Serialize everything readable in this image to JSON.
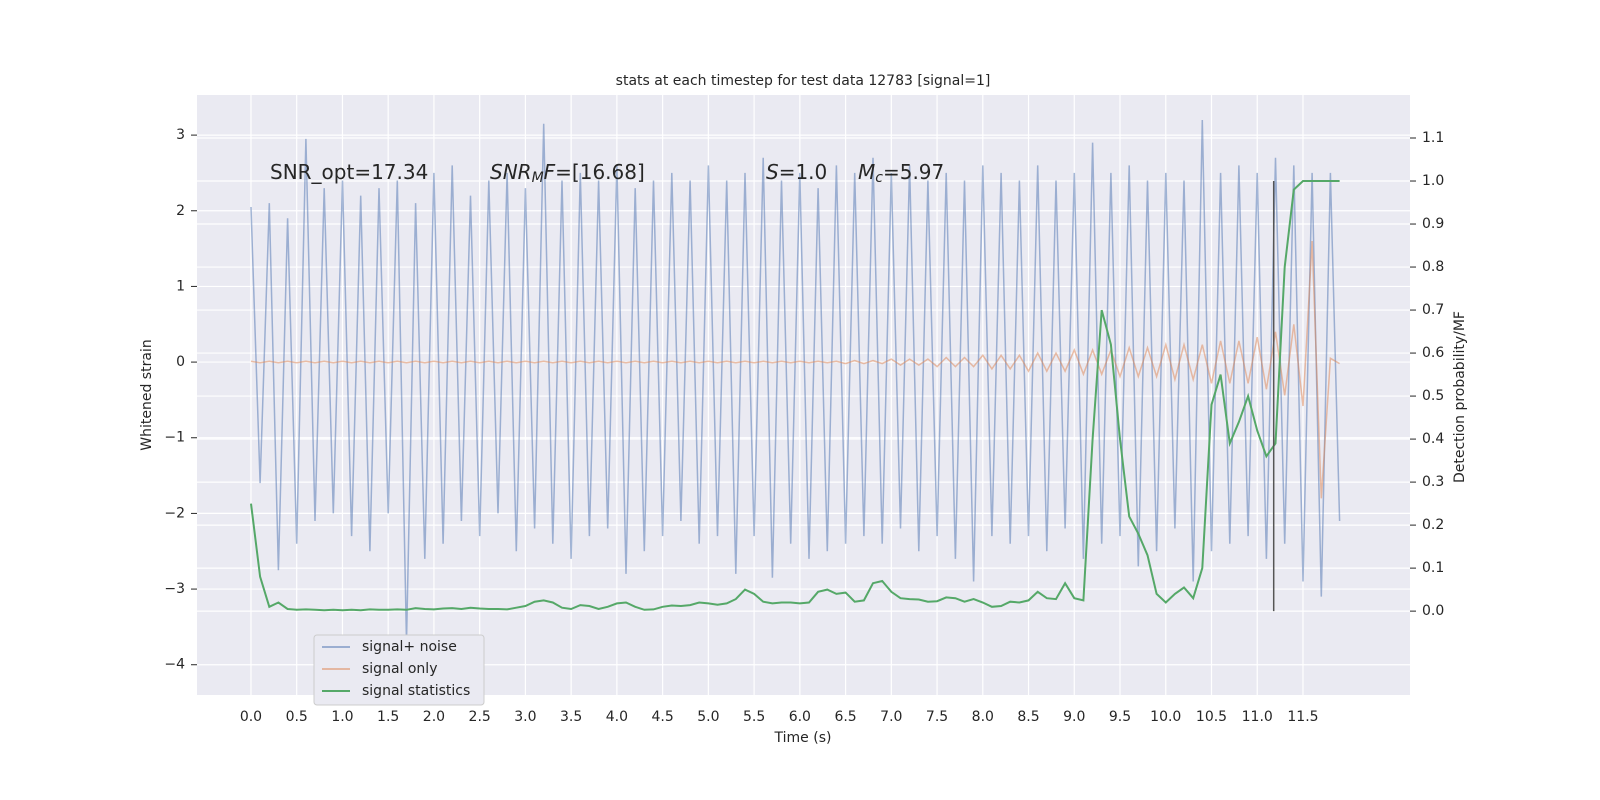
{
  "chart_data": {
    "type": "line",
    "title": "stats at each timestep for test data 12783 [signal=1]",
    "xlabel": "Time (s)",
    "ylabel": "Whitened strain",
    "y2label": "Detection probability/MF",
    "xlim": [
      -0.59,
      12.67
    ],
    "ylim": [
      -4.4,
      3.53
    ],
    "y2lim": [
      -0.195,
      1.2
    ],
    "xticks": [
      {
        "value": 0,
        "label": "0.0"
      },
      0.5,
      {
        "value": 1,
        "label": "1.0"
      },
      1.5,
      {
        "value": 2,
        "label": "2.0"
      },
      2.5,
      {
        "value": 3,
        "label": "3.0"
      },
      3.5,
      {
        "value": 4,
        "label": "4.0"
      },
      4.5,
      {
        "value": 5,
        "label": "5.0"
      },
      5.5,
      {
        "value": 6,
        "label": "6.0"
      },
      6.5,
      {
        "value": 7,
        "label": "7.0"
      },
      7.5,
      {
        "value": 8,
        "label": "8.0"
      },
      8.5,
      {
        "value": 9,
        "label": "9.0"
      },
      9.5,
      {
        "value": 10,
        "label": "10.0"
      },
      10.5,
      {
        "value": 11,
        "label": "11.0"
      },
      11.5
    ],
    "yticks": [
      {
        "value": -4,
        "label": "−4"
      },
      {
        "value": -3,
        "label": "−3"
      },
      {
        "value": -2,
        "label": "−2"
      },
      {
        "value": -1,
        "label": "−1"
      },
      0,
      1,
      2,
      3
    ],
    "y2ticks": [
      {
        "value": 0,
        "label": "0.0"
      },
      0.1,
      0.2,
      0.3,
      0.4,
      0.5,
      0.6,
      0.7,
      0.8,
      0.9,
      {
        "value": 1,
        "label": "1.0"
      },
      1.1
    ],
    "grid": true,
    "legend": "lower left",
    "x": [
      0.0,
      0.1,
      0.2,
      0.3,
      0.4,
      0.5,
      0.6,
      0.7,
      0.8,
      0.9,
      1.0,
      1.1,
      1.2,
      1.3,
      1.4,
      1.5,
      1.6,
      1.7,
      1.8,
      1.9,
      2.0,
      2.1,
      2.2,
      2.3,
      2.4,
      2.5,
      2.6,
      2.7,
      2.8,
      2.9,
      3.0,
      3.1,
      3.2,
      3.3,
      3.4,
      3.5,
      3.6,
      3.7,
      3.8,
      3.9,
      4.0,
      4.1,
      4.2,
      4.3,
      4.4,
      4.5,
      4.6,
      4.7,
      4.8,
      4.9,
      5.0,
      5.1,
      5.2,
      5.3,
      5.4,
      5.5,
      5.6,
      5.7,
      5.8,
      5.9,
      6.0,
      6.1,
      6.2,
      6.3,
      6.4,
      6.5,
      6.6,
      6.7,
      6.8,
      6.9,
      7.0,
      7.1,
      7.2,
      7.3,
      7.4,
      7.5,
      7.6,
      7.7,
      7.8,
      7.9,
      8.0,
      8.1,
      8.2,
      8.3,
      8.4,
      8.5,
      8.6,
      8.7,
      8.8,
      8.9,
      9.0,
      9.1,
      9.2,
      9.3,
      9.4,
      9.5,
      9.6,
      9.7,
      9.8,
      9.9,
      10.0,
      10.1,
      10.2,
      10.3,
      10.4,
      10.5,
      10.6,
      10.7,
      10.8,
      10.9,
      11.0,
      11.1,
      11.2,
      11.3,
      11.4,
      11.5,
      11.6,
      11.7,
      11.8,
      11.9
    ],
    "series": [
      {
        "name": "signal+ noise",
        "color": "#4c72b0",
        "opacity": 0.5,
        "values": [
          2.05,
          -1.6,
          2.1,
          -2.75,
          1.9,
          -2.4,
          2.95,
          -2.1,
          2.3,
          -2.0,
          2.4,
          -2.3,
          2.2,
          -2.5,
          2.3,
          -2.0,
          2.4,
          -3.7,
          2.1,
          -2.6,
          2.5,
          -2.4,
          2.6,
          -2.1,
          2.2,
          -2.3,
          2.4,
          -2.0,
          2.5,
          -2.5,
          2.3,
          -2.2,
          3.15,
          -2.4,
          2.4,
          -2.6,
          2.5,
          -2.3,
          2.4,
          -2.2,
          2.6,
          -2.8,
          2.3,
          -2.5,
          2.4,
          -2.3,
          2.5,
          -2.1,
          2.4,
          -2.4,
          2.6,
          -2.3,
          2.4,
          -2.8,
          2.5,
          -2.3,
          2.7,
          -2.85,
          2.4,
          -2.4,
          2.5,
          -2.6,
          2.3,
          -2.5,
          2.6,
          -2.4,
          2.5,
          -2.3,
          2.7,
          -2.4,
          2.5,
          -2.2,
          2.6,
          -2.5,
          2.4,
          -2.3,
          2.5,
          -2.6,
          2.4,
          -2.9,
          2.6,
          -2.3,
          2.5,
          -2.4,
          2.4,
          -2.3,
          2.6,
          -2.5,
          2.4,
          -2.2,
          2.5,
          -2.6,
          2.9,
          -2.4,
          2.5,
          -2.3,
          2.6,
          -2.7,
          2.4,
          -2.5,
          2.5,
          -2.2,
          2.4,
          -2.9,
          3.2,
          -2.5,
          2.5,
          -2.4,
          2.6,
          -2.3,
          2.5,
          -2.6,
          2.7,
          -2.4,
          2.6,
          -2.9,
          2.5,
          -3.1,
          2.5,
          -2.1
        ]
      },
      {
        "name": "signal only",
        "color": "#dd8452",
        "opacity": 0.5,
        "values": [
          0.01,
          -0.01,
          0.01,
          -0.01,
          0.01,
          -0.01,
          0.01,
          -0.01,
          0.01,
          -0.01,
          0.01,
          -0.01,
          0.01,
          -0.01,
          0.01,
          -0.01,
          0.01,
          -0.01,
          0.01,
          -0.01,
          0.01,
          -0.01,
          0.01,
          -0.01,
          0.01,
          -0.01,
          0.01,
          -0.01,
          0.01,
          -0.01,
          0.01,
          -0.01,
          0.01,
          -0.01,
          0.01,
          -0.01,
          0.01,
          -0.01,
          0.01,
          -0.01,
          0.01,
          -0.01,
          0.01,
          -0.01,
          0.01,
          -0.01,
          0.01,
          -0.01,
          0.01,
          -0.01,
          0.01,
          -0.01,
          0.01,
          -0.01,
          0.01,
          -0.01,
          0.01,
          -0.01,
          0.01,
          -0.01,
          0.01,
          -0.01,
          0.01,
          -0.01,
          0.01,
          -0.02,
          0.02,
          -0.02,
          0.02,
          -0.02,
          0.04,
          -0.04,
          0.04,
          -0.04,
          0.04,
          -0.06,
          0.06,
          -0.06,
          0.06,
          -0.06,
          0.09,
          -0.09,
          0.09,
          -0.09,
          0.09,
          -0.12,
          0.12,
          -0.12,
          0.12,
          -0.12,
          0.16,
          -0.16,
          0.16,
          -0.16,
          0.16,
          -0.19,
          0.19,
          -0.19,
          0.19,
          -0.19,
          0.23,
          -0.23,
          0.23,
          -0.23,
          0.23,
          -0.28,
          0.28,
          -0.28,
          0.28,
          -0.28,
          0.33,
          -0.36,
          0.4,
          -0.44,
          0.5,
          -0.58,
          1.6,
          -1.8,
          0.05,
          -0.02
        ]
      },
      {
        "name": "signal statistics",
        "color": "#55a868",
        "opacity": 1,
        "axis": "y2",
        "values": [
          0.25,
          0.08,
          0.01,
          0.02,
          0.005,
          0.003,
          0.004,
          0.003,
          0.002,
          0.003,
          0.002,
          0.003,
          0.002,
          0.004,
          0.003,
          0.003,
          0.004,
          0.003,
          0.007,
          0.005,
          0.004,
          0.006,
          0.007,
          0.005,
          0.008,
          0.006,
          0.005,
          0.005,
          0.004,
          0.008,
          0.012,
          0.022,
          0.025,
          0.02,
          0.008,
          0.005,
          0.014,
          0.012,
          0.005,
          0.01,
          0.018,
          0.02,
          0.01,
          0.003,
          0.004,
          0.01,
          0.013,
          0.012,
          0.014,
          0.02,
          0.018,
          0.015,
          0.018,
          0.028,
          0.05,
          0.04,
          0.022,
          0.018,
          0.02,
          0.02,
          0.018,
          0.02,
          0.045,
          0.05,
          0.04,
          0.043,
          0.022,
          0.025,
          0.065,
          0.07,
          0.045,
          0.03,
          0.028,
          0.027,
          0.022,
          0.023,
          0.032,
          0.03,
          0.022,
          0.028,
          0.02,
          0.01,
          0.012,
          0.022,
          0.02,
          0.025,
          0.045,
          0.03,
          0.028,
          0.065,
          0.03,
          0.025,
          0.4,
          0.7,
          0.62,
          0.4,
          0.22,
          0.18,
          0.13,
          0.04,
          0.02,
          0.04,
          0.055,
          0.03,
          0.1,
          0.48,
          0.55,
          0.39,
          0.44,
          0.5,
          0.42,
          0.36,
          0.39,
          0.8,
          0.98,
          1.0,
          1.0,
          1.0,
          1.0,
          1.0
        ]
      }
    ],
    "vline": {
      "x": 11.18,
      "ymin": 0,
      "ymax": 1,
      "color": "#555555"
    },
    "annotations": [
      [
        {
          "text": "SNR_opt=17.34",
          "style": "normal"
        }
      ],
      [
        {
          "text": "SNR",
          "style": "italic"
        },
        {
          "text": "M",
          "style": "sub"
        },
        {
          "text": "F",
          "style": "italic"
        },
        {
          "text": "=[16.68]",
          "style": "normal"
        }
      ],
      [
        {
          "text": "S",
          "style": "italic"
        },
        {
          "text": "=1.0",
          "style": "normal"
        }
      ],
      [
        {
          "text": "M",
          "style": "italic"
        },
        {
          "text": "c",
          "style": "sub"
        },
        {
          "text": "=5.97",
          "style": "normal"
        }
      ]
    ]
  }
}
